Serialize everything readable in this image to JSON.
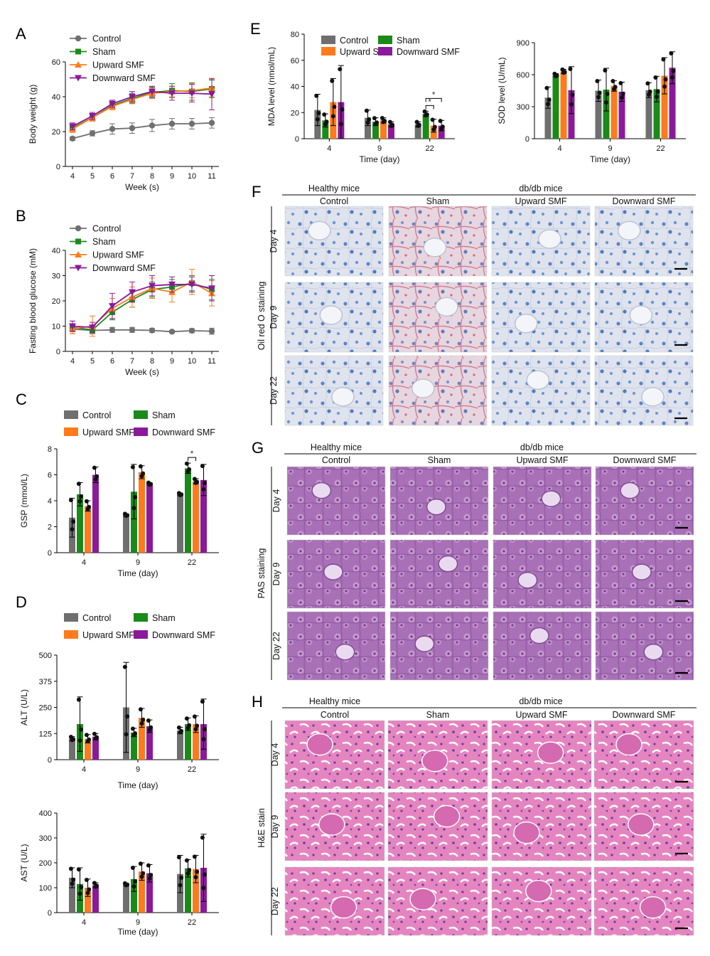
{
  "figure": {
    "panels": {
      "A": "A",
      "B": "B",
      "C": "C",
      "D": "D",
      "E": "E",
      "F": "F",
      "G": "G",
      "H": "H"
    },
    "micro_headers": {
      "healthy": "Healthy mice",
      "dbdb": "db/db mice",
      "control": "Control",
      "sham": "Sham",
      "upward": "Upward SMF",
      "downward": "Downward SMF"
    },
    "rows": [
      "Day 4",
      "Day 9",
      "Day 22"
    ],
    "F_stain": "Oil red O staining",
    "G_stain": "PAS staining",
    "H_stain": "H&E stain"
  },
  "colors": {
    "control": "#6f6f6f",
    "sham": "#1a8a1a",
    "upward": "#ff7a1a",
    "downward": "#8a1a9a",
    "oil_bg": "#d9dde8",
    "pas_bg": "#a46ab4",
    "he_bg": "#e07ab8"
  },
  "chart_data": [
    {
      "id": "A",
      "type": "line",
      "xlabel": "Week (s)",
      "ylabel": "Body weight (g)",
      "x": [
        4,
        5,
        6,
        7,
        8,
        9,
        10,
        11
      ],
      "ylim": [
        0,
        60
      ],
      "yticks": [
        0,
        20,
        40,
        60
      ],
      "series": [
        {
          "name": "Control",
          "marker": "circle",
          "values": [
            16,
            19,
            21.5,
            22,
            23.5,
            24.5,
            24.5,
            25
          ],
          "err": [
            1,
            1.5,
            3,
            3,
            3.5,
            3,
            3,
            3
          ]
        },
        {
          "name": "Sham",
          "marker": "square",
          "values": [
            22,
            28,
            35,
            39,
            42.5,
            43.5,
            43,
            44.5
          ],
          "err": [
            2,
            2,
            2,
            3,
            3,
            4,
            5,
            5
          ]
        },
        {
          "name": "Upward SMF",
          "marker": "triangle-up",
          "values": [
            21.5,
            28,
            34.5,
            38.5,
            42,
            43,
            43.5,
            45
          ],
          "err": [
            2,
            2,
            2,
            2,
            3,
            3,
            4,
            5
          ]
        },
        {
          "name": "Downward SMF",
          "marker": "triangle-down",
          "values": [
            23,
            29,
            36,
            40,
            43,
            42,
            42,
            41.5
          ],
          "err": [
            2,
            2,
            2,
            3,
            3,
            4,
            5,
            9
          ]
        }
      ]
    },
    {
      "id": "B",
      "type": "line",
      "xlabel": "Week (s)",
      "ylabel": "Fasting blood glucose (mM)",
      "x": [
        4,
        5,
        6,
        7,
        8,
        9,
        10,
        11
      ],
      "ylim": [
        0,
        40
      ],
      "yticks": [
        0,
        10,
        20,
        30,
        40
      ],
      "series": [
        {
          "name": "Control",
          "marker": "circle",
          "values": [
            8.8,
            8.3,
            8.5,
            8.5,
            8.3,
            7.8,
            8.2,
            8
          ],
          "err": [
            1,
            1,
            1,
            1,
            0.8,
            0.5,
            0.8,
            1.2
          ]
        },
        {
          "name": "Sham",
          "marker": "square",
          "values": [
            9.5,
            8.5,
            15.5,
            20.5,
            24.5,
            25.5,
            27,
            24.5
          ],
          "err": [
            2.5,
            1.5,
            3,
            3,
            3,
            3,
            3,
            4
          ]
        },
        {
          "name": "Upward SMF",
          "marker": "triangle-up",
          "values": [
            9,
            10,
            17,
            21.5,
            25,
            23.5,
            27.5,
            23
          ],
          "err": [
            2,
            4,
            4,
            4,
            4,
            4,
            5,
            5
          ]
        },
        {
          "name": "Downward SMF",
          "marker": "triangle-down",
          "values": [
            10,
            9.5,
            18,
            23.5,
            26,
            26.5,
            26.5,
            25
          ],
          "err": [
            2,
            2,
            5,
            4,
            4,
            3,
            3,
            5
          ]
        }
      ]
    },
    {
      "id": "C",
      "type": "bar",
      "xlabel": "Time (day)",
      "ylabel": "GSP (mmol/L)",
      "categories": [
        "4",
        "9",
        "22"
      ],
      "ylim": [
        0,
        8
      ],
      "yticks": [
        0,
        2,
        4,
        6,
        8
      ],
      "series": [
        {
          "name": "Control",
          "values": [
            2.7,
            2.9,
            4.5
          ],
          "err": [
            1.5,
            0.1,
            0.1
          ]
        },
        {
          "name": "Sham",
          "values": [
            4.5,
            4.7,
            6.5
          ],
          "err": [
            0.9,
            2.1,
            0.4
          ]
        },
        {
          "name": "Upward SMF",
          "values": [
            3.6,
            6.2,
            5.5
          ],
          "err": [
            0.4,
            0.5,
            0.2
          ]
        },
        {
          "name": "Downward SMF",
          "values": [
            6,
            5.3,
            5.6
          ],
          "err": [
            0.6,
            0.1,
            1.2
          ]
        }
      ],
      "annotation": {
        "text": "*",
        "group": 2,
        "from": 1,
        "to": 2
      }
    },
    {
      "id": "D1",
      "type": "bar",
      "xlabel": "Time (day)",
      "ylabel": "ALT (U/L)",
      "categories": [
        "4",
        "9",
        "22"
      ],
      "ylim": [
        0,
        500
      ],
      "yticks": [
        0,
        125,
        250,
        375,
        500
      ],
      "series": [
        {
          "name": "Control",
          "values": [
            100,
            250,
            140
          ],
          "err": [
            10,
            215,
            15
          ]
        },
        {
          "name": "Sham",
          "values": [
            170,
            130,
            170
          ],
          "err": [
            130,
            20,
            30
          ]
        },
        {
          "name": "Upward SMF",
          "values": [
            100,
            200,
            170
          ],
          "err": [
            20,
            45,
            40
          ]
        },
        {
          "name": "Downward SMF",
          "values": [
            110,
            160,
            170
          ],
          "err": [
            15,
            30,
            120
          ]
        }
      ]
    },
    {
      "id": "D2",
      "type": "bar",
      "xlabel": "Time (day)",
      "ylabel": "AST (U/L)",
      "categories": [
        "4",
        "9",
        "22"
      ],
      "ylim": [
        0,
        400
      ],
      "yticks": [
        0,
        100,
        200,
        300,
        400
      ],
      "series": [
        {
          "name": "Control",
          "values": [
            140,
            113,
            155
          ],
          "err": [
            40,
            5,
            75
          ]
        },
        {
          "name": "Sham",
          "values": [
            115,
            135,
            178
          ],
          "err": [
            65,
            50,
            35
          ]
        },
        {
          "name": "Upward SMF",
          "values": [
            100,
            165,
            175
          ],
          "err": [
            35,
            35,
            55
          ]
        },
        {
          "name": "Downward SMF",
          "values": [
            110,
            158,
            180
          ],
          "err": [
            10,
            35,
            135
          ]
        }
      ]
    },
    {
      "id": "E1",
      "type": "bar",
      "xlabel": "Time (day)",
      "ylabel": "MDA level (nmol/mL)",
      "categories": [
        "4",
        "9",
        "22"
      ],
      "ylim": [
        0,
        80
      ],
      "yticks": [
        0,
        20,
        40,
        60,
        80
      ],
      "series": [
        {
          "name": "Control",
          "values": [
            22,
            16,
            11
          ],
          "err": [
            12,
            6,
            2
          ]
        },
        {
          "name": "Sham",
          "values": [
            14,
            13,
            19
          ],
          "err": [
            5,
            3,
            2
          ]
        },
        {
          "name": "Upward SMF",
          "values": [
            28,
            14,
            10
          ],
          "err": [
            18,
            2,
            5
          ]
        },
        {
          "name": "Downward SMF",
          "values": [
            28,
            11,
            10
          ],
          "err": [
            28,
            2,
            4
          ]
        }
      ],
      "annotations": [
        {
          "text": "*",
          "group": 2,
          "from": 1,
          "to": 2
        },
        {
          "text": "*",
          "group": 2,
          "from": 1,
          "to": 3
        }
      ]
    },
    {
      "id": "E2",
      "type": "bar",
      "xlabel": "Time (day)",
      "ylabel": "SOD level (U/mL)",
      "categories": [
        "4",
        "9",
        "22"
      ],
      "ylim": [
        0,
        900
      ],
      "yticks": [
        0,
        300,
        600,
        900
      ],
      "series": [
        {
          "name": "Control",
          "values": [
            385,
            450,
            455
          ],
          "err": [
            100,
            100,
            70
          ]
        },
        {
          "name": "Sham",
          "values": [
            595,
            460,
            465
          ],
          "err": [
            15,
            200,
            120
          ]
        },
        {
          "name": "Upward SMF",
          "values": [
            630,
            495,
            590
          ],
          "err": [
            20,
            50,
            170
          ]
        },
        {
          "name": "Downward SMF",
          "values": [
            455,
            440,
            665
          ],
          "err": [
            220,
            90,
            150
          ]
        }
      ]
    }
  ]
}
